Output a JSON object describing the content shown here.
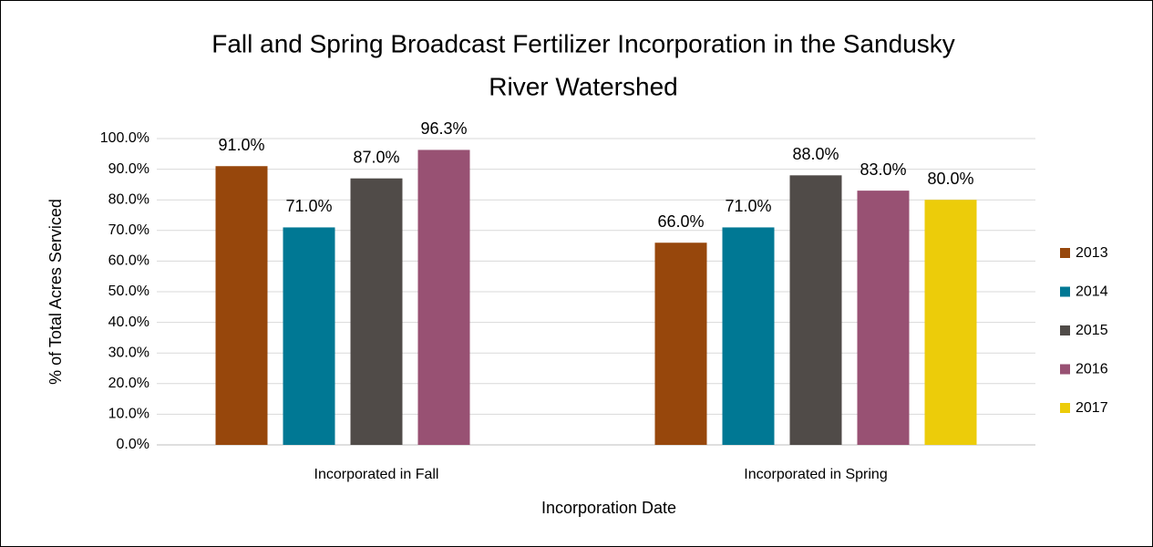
{
  "chart_data": {
    "type": "bar",
    "title": [
      "Fall and Spring Broadcast Fertilizer Incorporation in the Sandusky",
      "River Watershed"
    ],
    "x_label": "Incorporation Date",
    "y_label": "% of Total Acres Serviced",
    "categories": [
      "Incorporated in Fall",
      "Incorporated in Spring"
    ],
    "series": [
      {
        "name": "2013",
        "color": "#97470c",
        "values": [
          91,
          66
        ],
        "value_labels": [
          "91.0%",
          "66.0%"
        ]
      },
      {
        "name": "2014",
        "color": "#007894",
        "values": [
          71,
          71
        ],
        "value_labels": [
          "71.0%",
          "71.0%"
        ]
      },
      {
        "name": "2015",
        "color": "#504b48",
        "values": [
          87,
          88
        ],
        "value_labels": [
          "87.0%",
          "88.0%"
        ]
      },
      {
        "name": "2016",
        "color": "#985173",
        "values": [
          96.3,
          83
        ],
        "value_labels": [
          "96.3%",
          "83.0%"
        ]
      },
      {
        "name": "2017",
        "color": "#eccc0a",
        "values": [
          null,
          80
        ],
        "value_labels": [
          null,
          "80.0%"
        ]
      }
    ],
    "ylim": [
      0,
      100
    ],
    "yticks": [
      {
        "value": 0,
        "label": "0.0%"
      },
      {
        "value": 10,
        "label": "10.0%"
      },
      {
        "value": 20,
        "label": "20.0%"
      },
      {
        "value": 30,
        "label": "30.0%"
      },
      {
        "value": 40,
        "label": "40.0%"
      },
      {
        "value": 50,
        "label": "50.0%"
      },
      {
        "value": 60,
        "label": "60.0%"
      },
      {
        "value": 70,
        "label": "70.0%"
      },
      {
        "value": 80,
        "label": "80.0%"
      },
      {
        "value": 90,
        "label": "90.0%"
      },
      {
        "value": 100,
        "label": "100.0%"
      }
    ],
    "grid": true,
    "legend": "right"
  }
}
